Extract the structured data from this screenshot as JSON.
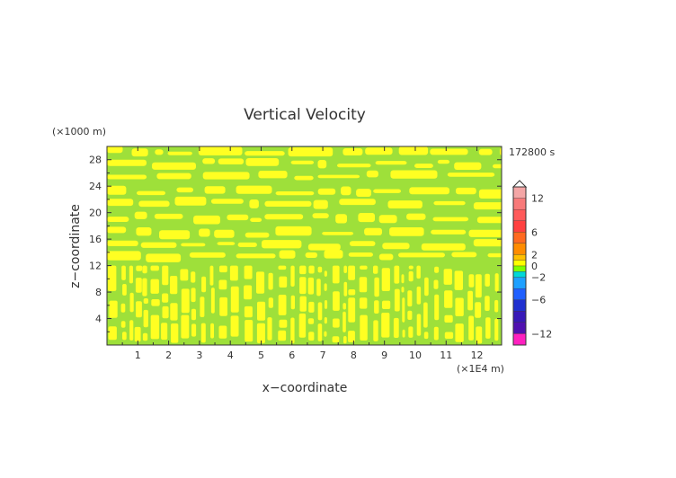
{
  "chart_data": {
    "type": "heatmap",
    "title": "Vertical Velocity",
    "xlabel": "x−coordinate",
    "ylabel": "z−coordinate",
    "x_unit": "(×1E4 m)",
    "y_unit": "(×1000 m)",
    "time_label": "172800 s",
    "xlim": [
      0,
      12.8
    ],
    "ylim": [
      0,
      30
    ],
    "x_ticks": [
      "1",
      "2",
      "3",
      "4",
      "5",
      "6",
      "7",
      "8",
      "9",
      "10",
      "11",
      "12"
    ],
    "y_ticks": [
      "4",
      "8",
      "12",
      "16",
      "20",
      "24",
      "28"
    ],
    "field_description": "Alternating yellow (slightly positive) and green (near zero) bands; horizontal layering above ~14 km, vertical cell structures below.",
    "colorbar": {
      "tick_labels": [
        "12",
        "6",
        "2",
        "0",
        "−2",
        "−6",
        "−12"
      ],
      "tick_values": [
        12,
        6,
        2,
        0,
        -2,
        -6,
        -12
      ],
      "range": [
        -14,
        14
      ],
      "colors": {
        "pos_high": "#f4a6a6",
        "pos_mid": "#ff4040",
        "pos_low": "#ff8c00",
        "near_zero_pos": "#ffff00",
        "near_zero": "#7fff00",
        "neg_low": "#00d8d8",
        "neg_mid": "#2060ff",
        "neg_high": "#5010b0",
        "neg_max": "#ff20c0"
      }
    },
    "field_colors": {
      "positive": "#ffff22",
      "neutral": "#9ee03a"
    }
  }
}
